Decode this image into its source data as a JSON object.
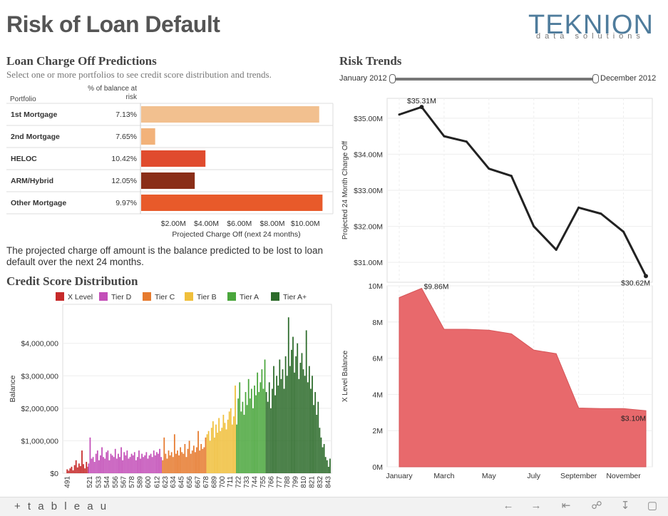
{
  "header": {
    "title": "Risk of Loan Default",
    "logo_main": "TEKNION",
    "logo_sub": "data solutions"
  },
  "predictions": {
    "title": "Loan Charge Off Predictions",
    "subtitle": "Select one or more portfolios to see credit score distribution and trends.",
    "col_portfolio": "Portfolio",
    "col_pct": "% of balance at risk"
  },
  "note": "The projected charge off amount is the balance predicted to be lost to loan default over the next 24 months.",
  "credit_title": "Credit Score Distribution",
  "risk_title": "Risk Trends",
  "slider": {
    "start": "January 2012",
    "end": "December 2012"
  },
  "footer": {
    "logo": "+ t a b l e a u"
  },
  "colors": {
    "x_level": "#c62a2a",
    "tier_d": "#c34fb8",
    "tier_c": "#e67a2e",
    "tier_b": "#f0bf3b",
    "tier_a": "#4aa63c",
    "tier_a_plus": "#2c6b2a",
    "mortgage1": "#f2c08f",
    "mortgage2": "#f2b27a",
    "heloc": "#e04b2e",
    "arm": "#8a2e18",
    "other": "#e85a2a",
    "line": "#222222",
    "area": "#e8696c"
  },
  "chart_data": [
    {
      "type": "bar",
      "orientation": "horizontal",
      "categories": [
        "1st Mortgage",
        "2nd Mortgage",
        "HELOC",
        "ARM/Hybrid",
        "Other Mortgage"
      ],
      "pct_at_risk": [
        "7.13%",
        "7.65%",
        "10.42%",
        "12.05%",
        "9.97%"
      ],
      "values": [
        10.8,
        0.85,
        3.9,
        3.25,
        11.0
      ],
      "xlabel": "Projected Charge Off (next 24 months)",
      "xticks": [
        "$2.00M",
        "$4.00M",
        "$6.00M",
        "$8.00M",
        "$10.00M"
      ],
      "xtick_values": [
        2,
        4,
        6,
        8,
        10
      ],
      "xlim": [
        0,
        11.2
      ]
    },
    {
      "type": "bar",
      "title": "Credit Score Distribution",
      "ylabel": "Balance",
      "yticks": [
        "$0",
        "$1,000,000",
        "$2,000,000",
        "$3,000,000",
        "$4,000,000"
      ],
      "ytick_values": [
        0,
        1000000,
        2000000,
        3000000,
        4000000
      ],
      "ylim": [
        0,
        5200000
      ],
      "xlim": [
        485,
        848
      ],
      "xticks": [
        "491",
        "521",
        "533",
        "544",
        "556",
        "567",
        "578",
        "589",
        "600",
        "612",
        "623",
        "634",
        "645",
        "656",
        "667",
        "678",
        "689",
        "700",
        "711",
        "722",
        "733",
        "744",
        "755",
        "766",
        "777",
        "788",
        "799",
        "810",
        "821",
        "832",
        "843"
      ],
      "legend": [
        "X Level",
        "Tier D",
        "Tier C",
        "Tier B",
        "Tier A",
        "Tier A+"
      ],
      "tiers": [
        {
          "name": "X Level",
          "range": [
            491,
            519
          ]
        },
        {
          "name": "Tier D",
          "range": [
            520,
            619
          ]
        },
        {
          "name": "Tier C",
          "range": [
            620,
            679
          ]
        },
        {
          "name": "Tier B",
          "range": [
            680,
            719
          ]
        },
        {
          "name": "Tier A",
          "range": [
            720,
            759
          ]
        },
        {
          "name": "Tier A+",
          "range": [
            760,
            847
          ]
        }
      ],
      "series": [
        {
          "name": "X Level",
          "x": [
            491,
            493,
            495,
            497,
            499,
            501,
            503,
            505,
            507,
            509,
            511,
            513,
            515,
            517,
            519
          ],
          "values": [
            120000,
            80000,
            150000,
            200000,
            90000,
            250000,
            400000,
            180000,
            300000,
            220000,
            700000,
            280000,
            150000,
            350000,
            200000
          ]
        },
        {
          "name": "Tier D",
          "x": [
            520,
            522,
            524,
            526,
            528,
            530,
            532,
            534,
            536,
            538,
            540,
            542,
            544,
            546,
            548,
            550,
            552,
            554,
            556,
            558,
            560,
            562,
            564,
            566,
            568,
            570,
            572,
            574,
            576,
            578,
            580,
            582,
            584,
            586,
            588,
            590,
            592,
            594,
            596,
            598,
            600,
            602,
            604,
            606,
            608,
            610,
            612,
            614,
            616,
            618
          ],
          "values": [
            300000,
            1100000,
            450000,
            500000,
            350000,
            600000,
            700000,
            400000,
            550000,
            800000,
            500000,
            450000,
            650000,
            700000,
            400000,
            600000,
            550000,
            500000,
            750000,
            450000,
            600000,
            500000,
            800000,
            400000,
            650000,
            550000,
            700000,
            450000,
            500000,
            600000,
            550000,
            650000,
            400000,
            500000,
            700000,
            450000,
            600000,
            500000,
            550000,
            650000,
            450000,
            550000,
            600000,
            500000,
            700000,
            550000,
            650000,
            600000,
            750000,
            500000
          ]
        },
        {
          "name": "Tier C",
          "x": [
            620,
            622,
            624,
            626,
            628,
            630,
            632,
            634,
            636,
            638,
            640,
            642,
            644,
            646,
            648,
            650,
            652,
            654,
            656,
            658,
            660,
            662,
            664,
            666,
            668,
            670,
            672,
            674,
            676,
            678
          ],
          "values": [
            400000,
            1100000,
            600000,
            450000,
            700000,
            550000,
            650000,
            500000,
            1200000,
            600000,
            700000,
            550000,
            800000,
            650000,
            600000,
            900000,
            500000,
            750000,
            1000000,
            600000,
            700000,
            850000,
            650000,
            800000,
            1300000,
            700000,
            900000,
            750000,
            800000,
            1100000
          ]
        },
        {
          "name": "Tier B",
          "x": [
            680,
            682,
            684,
            686,
            688,
            690,
            692,
            694,
            696,
            698,
            700,
            702,
            704,
            706,
            708,
            710,
            712,
            714,
            716,
            718
          ],
          "values": [
            1200000,
            1300000,
            1000000,
            1400000,
            1600000,
            1100000,
            1500000,
            1250000,
            1700000,
            1300000,
            1400000,
            1800000,
            1550000,
            1350000,
            1650000,
            1900000,
            2000000,
            1500000,
            1750000,
            2700000
          ]
        },
        {
          "name": "Tier A",
          "x": [
            720,
            722,
            724,
            726,
            728,
            730,
            732,
            734,
            736,
            738,
            740,
            742,
            744,
            746,
            748,
            750,
            752,
            754,
            756,
            758
          ],
          "values": [
            1500000,
            2300000,
            2800000,
            1900000,
            2200000,
            1800000,
            2500000,
            2100000,
            2900000,
            2300000,
            2600000,
            2000000,
            2700000,
            2400000,
            3100000,
            2500000,
            2800000,
            3200000,
            2600000,
            3500000
          ]
        },
        {
          "name": "Tier A+",
          "x": [
            760,
            762,
            764,
            766,
            768,
            770,
            772,
            774,
            776,
            778,
            780,
            782,
            784,
            786,
            788,
            790,
            792,
            794,
            796,
            798,
            800,
            802,
            804,
            806,
            808,
            810,
            812,
            814,
            816,
            818,
            820,
            822,
            824,
            826,
            828,
            830,
            832,
            834,
            836,
            838,
            840,
            842,
            844,
            846
          ],
          "values": [
            2500000,
            2200000,
            2800000,
            2000000,
            2600000,
            3300000,
            2400000,
            3000000,
            2700000,
            3500000,
            2900000,
            3200000,
            2600000,
            3600000,
            3000000,
            4800000,
            3300000,
            3800000,
            4200000,
            3100000,
            3600000,
            4000000,
            2900000,
            3400000,
            3700000,
            3200000,
            3000000,
            4400000,
            2800000,
            3300000,
            2600000,
            3000000,
            2100000,
            2500000,
            1800000,
            2200000,
            1400000,
            1100000,
            800000,
            900000,
            500000,
            400000,
            200000,
            450000
          ]
        }
      ]
    },
    {
      "type": "line",
      "ylabel": "Projected 24 Month Charge Off",
      "x": [
        "January",
        "February",
        "March",
        "April",
        "May",
        "June",
        "July",
        "August",
        "September",
        "October",
        "November",
        "December"
      ],
      "values": [
        35.1,
        35.31,
        34.5,
        34.35,
        33.6,
        33.4,
        32.0,
        31.35,
        32.52,
        32.35,
        31.85,
        30.62
      ],
      "unit": "M",
      "labels": [
        {
          "index": 1,
          "text": "$35.31M"
        },
        {
          "index": 11,
          "text": "$30.62M"
        }
      ],
      "yticks": [
        "$31.00M",
        "$32.00M",
        "$33.00M",
        "$34.00M",
        "$35.00M"
      ],
      "ytick_values": [
        31,
        32,
        33,
        34,
        35
      ],
      "ylim": [
        30.45,
        35.55
      ]
    },
    {
      "type": "area",
      "ylabel": "X Level Balance",
      "x": [
        "January",
        "February",
        "March",
        "April",
        "May",
        "June",
        "July",
        "August",
        "September",
        "October",
        "November",
        "December"
      ],
      "xticks": [
        "January",
        "March",
        "May",
        "July",
        "September",
        "November"
      ],
      "values": [
        9.35,
        9.86,
        7.6,
        7.6,
        7.55,
        7.35,
        6.45,
        6.25,
        3.25,
        3.22,
        3.22,
        3.1
      ],
      "unit": "M",
      "labels": [
        {
          "index": 1,
          "text": "$9.86M"
        },
        {
          "index": 11,
          "text": "$3.10M"
        }
      ],
      "yticks": [
        "0M",
        "2M",
        "4M",
        "6M",
        "8M",
        "10M"
      ],
      "ytick_values": [
        0,
        2,
        4,
        6,
        8,
        10
      ],
      "ylim": [
        0,
        10
      ]
    }
  ]
}
